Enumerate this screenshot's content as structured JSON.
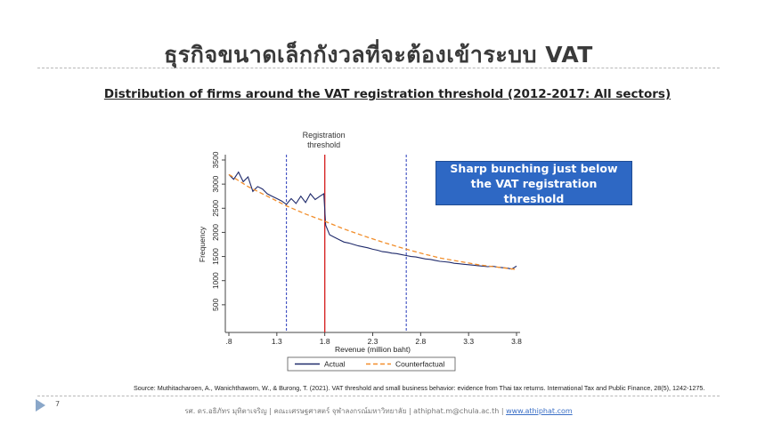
{
  "slide": {
    "title": "ธุรกิจขนาดเล็กกังวลที่จะต้องเข้าระบบ VAT",
    "subtitle": "Distribution of firms around the VAT registration threshold (2012-2017: All sectors)",
    "callout": "Sharp bunching just below the VAT registration threshold",
    "source": "Source: Muthitacharoen, A., Wanichthaworn, W., & Burong, T. (2021). VAT threshold and small business behavior: evidence from Thai tax returns. International Tax and Public Finance, 28(5), 1242-1275.",
    "page_number": "7",
    "footer_text": "รศ. ดร.อธิภัทร มุทิตาเจริญ | คณะเศรษฐศาสตร์ จุฬาลงกรณ์มหาวิทยาลัย | athiphat.m@chula.ac.th | ",
    "footer_link": "www.athiphat.com"
  },
  "chart_data": {
    "type": "line",
    "xlabel": "Revenue (million baht)",
    "ylabel": "Frequency",
    "xlim": [
      0.8,
      3.8
    ],
    "ylim": [
      0,
      3500
    ],
    "xticks": [
      0.8,
      1.3,
      1.8,
      2.3,
      2.8,
      3.3,
      3.8
    ],
    "xtick_labels": [
      ".8",
      "1.3",
      "1.8",
      "2.3",
      "2.8",
      "3.3",
      "3.8"
    ],
    "yticks": [
      500,
      1000,
      1500,
      2000,
      2500,
      3000,
      3500
    ],
    "ytick_labels": [
      "500",
      "1000",
      "1500",
      "2000",
      "2500",
      "3000",
      "3500"
    ],
    "threshold_line": {
      "x": 1.8,
      "color": "#d62728",
      "label": "Registration\nthreshold"
    },
    "bandwidth_lines": [
      {
        "x": 1.4,
        "color": "#3b4cc0"
      },
      {
        "x": 2.65,
        "color": "#3b4cc0"
      }
    ],
    "legend": {
      "placement": "bottom",
      "entries": [
        "Actual",
        "Counterfactual"
      ]
    },
    "series": [
      {
        "name": "Actual",
        "color": "#1f2a6b",
        "style": "solid",
        "x": [
          0.8,
          0.85,
          0.9,
          0.95,
          1.0,
          1.05,
          1.1,
          1.15,
          1.2,
          1.25,
          1.3,
          1.35,
          1.4,
          1.45,
          1.5,
          1.55,
          1.6,
          1.65,
          1.7,
          1.75,
          1.79,
          1.81,
          1.85,
          1.9,
          1.95,
          2.0,
          2.05,
          2.1,
          2.15,
          2.2,
          2.25,
          2.3,
          2.35,
          2.4,
          2.45,
          2.5,
          2.55,
          2.6,
          2.65,
          2.7,
          2.75,
          2.8,
          2.85,
          2.9,
          2.95,
          3.0,
          3.05,
          3.1,
          3.15,
          3.2,
          3.25,
          3.3,
          3.35,
          3.4,
          3.45,
          3.5,
          3.55,
          3.6,
          3.65,
          3.7,
          3.75,
          3.8
        ],
        "y": [
          3200,
          3100,
          3250,
          3050,
          3150,
          2850,
          2950,
          2900,
          2800,
          2750,
          2700,
          2650,
          2580,
          2700,
          2600,
          2750,
          2620,
          2800,
          2680,
          2750,
          2800,
          2150,
          1950,
          1900,
          1850,
          1800,
          1780,
          1750,
          1720,
          1700,
          1680,
          1650,
          1630,
          1600,
          1590,
          1570,
          1560,
          1540,
          1520,
          1500,
          1490,
          1470,
          1450,
          1440,
          1420,
          1400,
          1390,
          1380,
          1360,
          1350,
          1340,
          1330,
          1320,
          1310,
          1300,
          1290,
          1300,
          1280,
          1270,
          1260,
          1240,
          1300
        ]
      },
      {
        "name": "Counterfactual",
        "color": "#f28e2b",
        "style": "dashed",
        "x": [
          0.8,
          1.0,
          1.2,
          1.4,
          1.6,
          1.8,
          2.0,
          2.2,
          2.4,
          2.6,
          2.8,
          3.0,
          3.2,
          3.4,
          3.6,
          3.8
        ],
        "y": [
          3200,
          2950,
          2750,
          2550,
          2380,
          2230,
          2070,
          1930,
          1800,
          1680,
          1570,
          1470,
          1400,
          1330,
          1280,
          1230
        ]
      }
    ]
  }
}
